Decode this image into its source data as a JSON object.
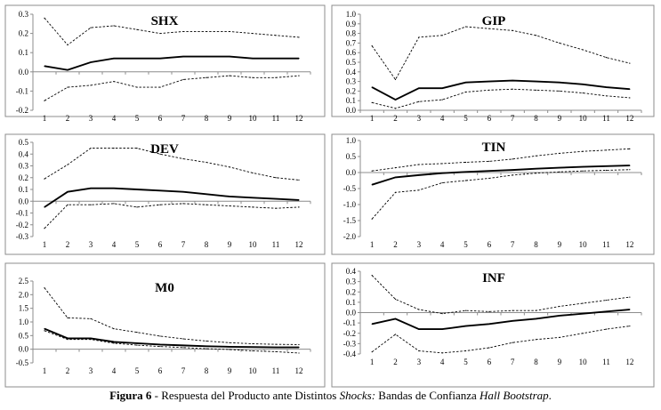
{
  "caption": {
    "label": "Figura 6",
    "sep": " - Respuesta del Producto ante Distintos ",
    "shocks": "Shocks:",
    "mid": " Bandas de Confianza ",
    "method": "Hall Bootstrap",
    "end": "."
  },
  "chart_data": [
    {
      "type": "line",
      "title": "SHX",
      "x": [
        1,
        2,
        3,
        4,
        5,
        6,
        7,
        8,
        9,
        10,
        11,
        12
      ],
      "ylim": [
        -0.2,
        0.3
      ],
      "yticks": [
        0.3,
        0.2,
        0.1,
        0.0,
        -0.1,
        -0.2
      ],
      "ytick_labels": [
        "0.3",
        "0.2",
        "0.1",
        "0.0",
        "-0.1",
        "-0.2"
      ],
      "series": [
        {
          "role": "upper",
          "style": "dashed",
          "values": [
            0.28,
            0.14,
            0.23,
            0.24,
            0.22,
            0.2,
            0.21,
            0.21,
            0.21,
            0.2,
            0.19,
            0.18
          ]
        },
        {
          "role": "response",
          "style": "solid",
          "values": [
            0.03,
            0.01,
            0.05,
            0.07,
            0.07,
            0.07,
            0.08,
            0.08,
            0.08,
            0.07,
            0.07,
            0.07
          ]
        },
        {
          "role": "lower",
          "style": "dashed",
          "values": [
            -0.15,
            -0.08,
            -0.07,
            -0.05,
            -0.08,
            -0.08,
            -0.04,
            -0.03,
            -0.02,
            -0.03,
            -0.03,
            -0.02
          ]
        }
      ]
    },
    {
      "type": "line",
      "title": "GIP",
      "x": [
        1,
        2,
        3,
        4,
        5,
        6,
        7,
        8,
        9,
        10,
        11,
        12
      ],
      "ylim": [
        0.0,
        1.0
      ],
      "yticks": [
        1.0,
        0.9,
        0.8,
        0.7,
        0.6,
        0.5,
        0.4,
        0.3,
        0.2,
        0.1,
        0.0
      ],
      "ytick_labels": [
        "1.0",
        "0.9",
        "0.8",
        "0.7",
        "0.6",
        "0.5",
        "0.4",
        "0.3",
        "0.2",
        "0.1",
        "0.0"
      ],
      "series": [
        {
          "role": "upper",
          "style": "dashed",
          "values": [
            0.67,
            0.32,
            0.76,
            0.78,
            0.87,
            0.85,
            0.83,
            0.78,
            0.7,
            0.63,
            0.55,
            0.49
          ]
        },
        {
          "role": "response",
          "style": "solid",
          "values": [
            0.24,
            0.11,
            0.23,
            0.23,
            0.29,
            0.3,
            0.31,
            0.3,
            0.29,
            0.27,
            0.24,
            0.22
          ]
        },
        {
          "role": "lower",
          "style": "dashed",
          "values": [
            0.08,
            0.02,
            0.09,
            0.11,
            0.19,
            0.21,
            0.22,
            0.21,
            0.2,
            0.18,
            0.15,
            0.13
          ]
        }
      ]
    },
    {
      "type": "line",
      "title": "DEV",
      "x": [
        1,
        2,
        3,
        4,
        5,
        6,
        7,
        8,
        9,
        10,
        11,
        12
      ],
      "ylim": [
        -0.3,
        0.5
      ],
      "yticks": [
        0.5,
        0.4,
        0.3,
        0.2,
        0.1,
        0.0,
        -0.1,
        -0.2,
        -0.3
      ],
      "ytick_labels": [
        "0.5",
        "0.4",
        "0.3",
        "0.2",
        "0.1",
        "0.0",
        "-0.1",
        "-0.2",
        "-0.3"
      ],
      "series": [
        {
          "role": "upper",
          "style": "dashed",
          "values": [
            0.19,
            0.31,
            0.45,
            0.45,
            0.45,
            0.4,
            0.36,
            0.33,
            0.29,
            0.24,
            0.2,
            0.18
          ]
        },
        {
          "role": "response",
          "style": "solid",
          "values": [
            -0.05,
            0.08,
            0.11,
            0.11,
            0.1,
            0.09,
            0.08,
            0.06,
            0.04,
            0.03,
            0.02,
            0.01
          ]
        },
        {
          "role": "lower",
          "style": "dashed",
          "values": [
            -0.23,
            -0.03,
            -0.03,
            -0.02,
            -0.05,
            -0.03,
            -0.02,
            -0.03,
            -0.04,
            -0.05,
            -0.06,
            -0.05
          ]
        }
      ]
    },
    {
      "type": "line",
      "title": "TIN",
      "x": [
        1,
        2,
        3,
        4,
        5,
        6,
        7,
        8,
        9,
        10,
        11,
        12
      ],
      "ylim": [
        -2.0,
        1.0
      ],
      "yticks": [
        1.0,
        0.5,
        0.0,
        -0.5,
        -1.0,
        -1.5,
        -2.0
      ],
      "ytick_labels": [
        "1.0",
        "0.5",
        "0.0",
        "-0.5",
        "-1.0",
        "-1.5",
        "-2.0"
      ],
      "series": [
        {
          "role": "upper",
          "style": "dashed",
          "values": [
            0.05,
            0.15,
            0.25,
            0.28,
            0.32,
            0.35,
            0.42,
            0.52,
            0.6,
            0.66,
            0.7,
            0.74
          ]
        },
        {
          "role": "response",
          "style": "solid",
          "values": [
            -0.38,
            -0.15,
            -0.08,
            -0.02,
            0.02,
            0.05,
            0.08,
            0.12,
            0.15,
            0.18,
            0.2,
            0.22
          ]
        },
        {
          "role": "lower",
          "style": "dashed",
          "values": [
            -1.45,
            -0.62,
            -0.55,
            -0.32,
            -0.25,
            -0.18,
            -0.08,
            -0.02,
            0.02,
            0.05,
            0.07,
            0.09
          ]
        }
      ]
    },
    {
      "type": "line",
      "title": "M0",
      "x": [
        1,
        2,
        3,
        4,
        5,
        6,
        7,
        8,
        9,
        10,
        11,
        12
      ],
      "ylim": [
        -0.5,
        2.5
      ],
      "yticks": [
        2.5,
        2.0,
        1.5,
        1.0,
        0.5,
        0.0,
        -0.5
      ],
      "ytick_labels": [
        "2.5",
        "2.0",
        "1.5",
        "1.0",
        "0.5",
        "0.0",
        "-0.5"
      ],
      "series": [
        {
          "role": "upper",
          "style": "dashed",
          "values": [
            2.25,
            1.15,
            1.12,
            0.75,
            0.62,
            0.48,
            0.38,
            0.3,
            0.24,
            0.2,
            0.18,
            0.17
          ]
        },
        {
          "role": "response",
          "style": "solid",
          "values": [
            0.75,
            0.4,
            0.4,
            0.27,
            0.22,
            0.17,
            0.14,
            0.11,
            0.09,
            0.08,
            0.07,
            0.07
          ]
        },
        {
          "role": "lower",
          "style": "dashed",
          "values": [
            0.68,
            0.36,
            0.36,
            0.22,
            0.15,
            0.1,
            0.06,
            0.02,
            -0.01,
            -0.06,
            -0.09,
            -0.14
          ]
        }
      ]
    },
    {
      "type": "line",
      "title": "INF",
      "x": [
        1,
        2,
        3,
        4,
        5,
        6,
        7,
        8,
        9,
        10,
        11,
        12
      ],
      "ylim": [
        -0.4,
        0.4
      ],
      "yticks": [
        0.4,
        0.3,
        0.2,
        0.1,
        0.0,
        -0.1,
        -0.2,
        -0.3,
        -0.4
      ],
      "ytick_labels": [
        "0.4",
        "0.3",
        "0.2",
        "0.1",
        "0.0",
        "-0.1",
        "-0.2",
        "-0.3",
        "-0.4"
      ],
      "series": [
        {
          "role": "upper",
          "style": "dashed",
          "values": [
            0.36,
            0.13,
            0.03,
            -0.01,
            0.02,
            0.01,
            0.02,
            0.02,
            0.06,
            0.09,
            0.12,
            0.15
          ]
        },
        {
          "role": "response",
          "style": "solid",
          "values": [
            -0.11,
            -0.06,
            -0.16,
            -0.16,
            -0.13,
            -0.11,
            -0.08,
            -0.06,
            -0.03,
            -0.01,
            0.01,
            0.03
          ]
        },
        {
          "role": "lower",
          "style": "dashed",
          "values": [
            -0.38,
            -0.21,
            -0.37,
            -0.39,
            -0.37,
            -0.34,
            -0.29,
            -0.26,
            -0.24,
            -0.2,
            -0.16,
            -0.13
          ]
        }
      ]
    }
  ]
}
